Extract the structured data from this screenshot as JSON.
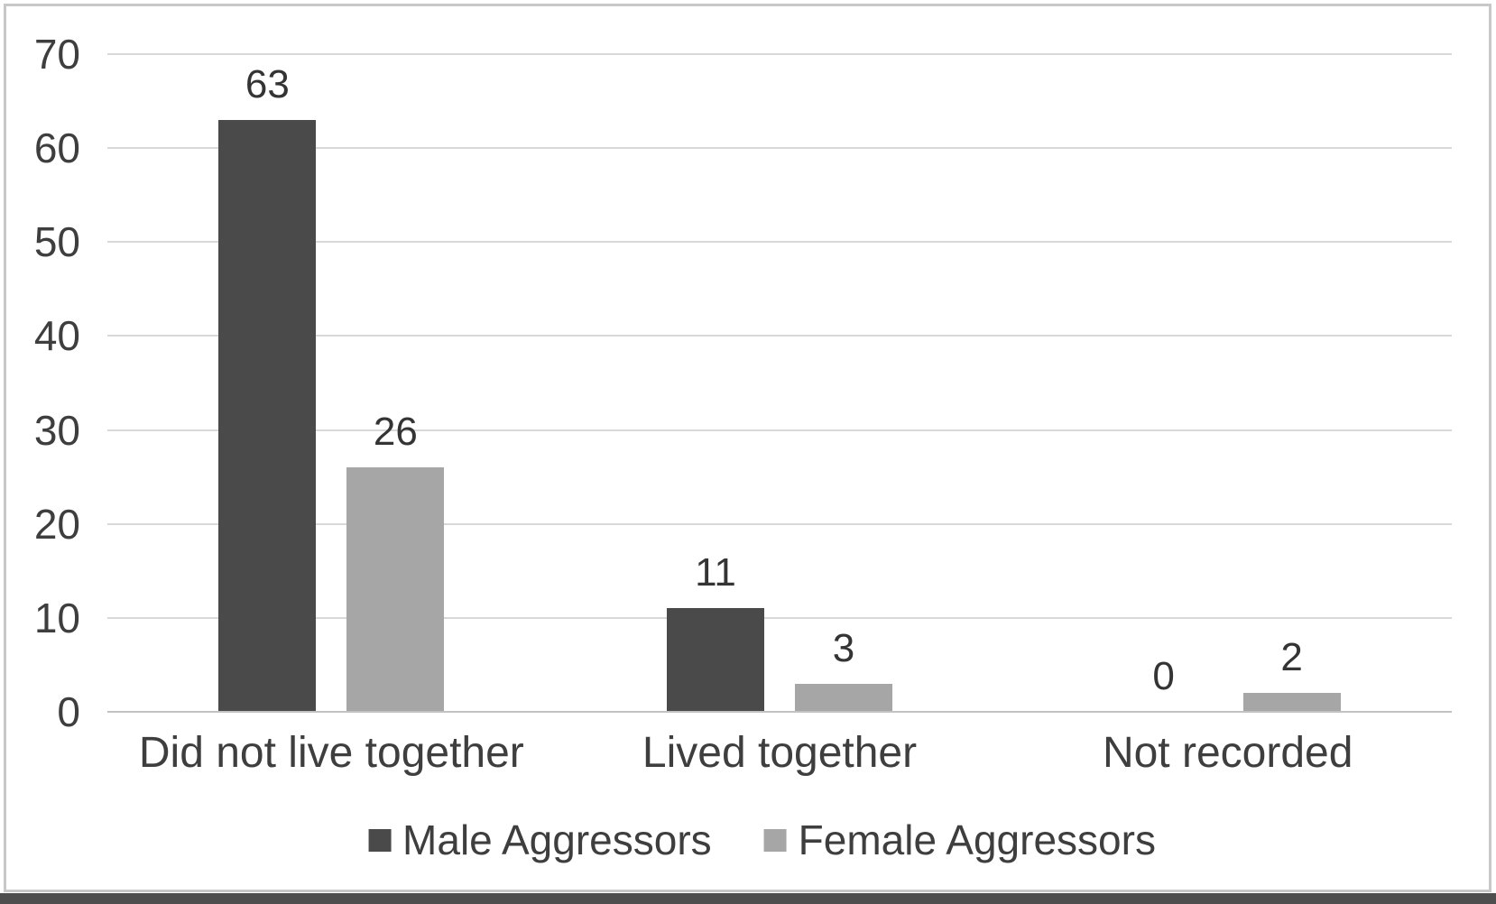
{
  "chart_data": {
    "type": "bar",
    "title": "",
    "xlabel": "",
    "ylabel": "",
    "categories": [
      "Did not live together",
      "Lived together",
      "Not recorded"
    ],
    "series": [
      {
        "name": "Male Aggressors",
        "color": "#4a4a4a",
        "values": [
          63,
          11,
          0
        ]
      },
      {
        "name": "Female Aggressors",
        "color": "#a6a6a6",
        "values": [
          26,
          3,
          2
        ]
      }
    ],
    "ylim": [
      0,
      70
    ],
    "yticks": [
      0,
      10,
      20,
      30,
      40,
      50,
      60,
      70
    ],
    "grid": "horizontal",
    "legend_position": "bottom",
    "value_labels": [
      [
        "63",
        "11",
        "0"
      ],
      [
        "26",
        "3",
        "2"
      ]
    ]
  },
  "palette": {
    "background": "#ffffff",
    "text": "#3e3e3e",
    "gridline": "#d8d8d8",
    "axis_line": "#c2c2c2",
    "frame_border": "#c8c8c8",
    "bottom_strip": "#4e4e4e"
  }
}
